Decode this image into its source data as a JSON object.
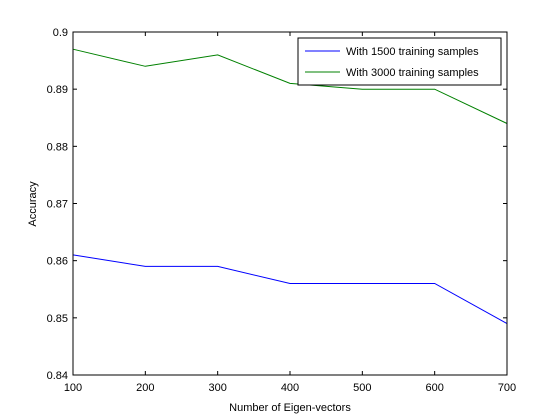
{
  "chart_data": {
    "type": "line",
    "xlabel": "Number of Eigen-vectors",
    "ylabel": "Accuracy",
    "x": [
      100,
      200,
      300,
      400,
      500,
      600,
      700
    ],
    "xlim": [
      100,
      700
    ],
    "ylim": [
      0.84,
      0.9
    ],
    "xticks": [
      "100",
      "200",
      "300",
      "400",
      "500",
      "600",
      "700"
    ],
    "yticks": [
      "0.84",
      "0.85",
      "0.86",
      "0.87",
      "0.88",
      "0.89",
      "0.9"
    ],
    "grid": false,
    "legend_position": "top-right",
    "series": [
      {
        "name": "With 1500 training samples",
        "color": "#0000ff",
        "values": [
          0.861,
          0.859,
          0.859,
          0.856,
          0.856,
          0.856,
          0.849
        ]
      },
      {
        "name": "With 3000 training samples",
        "color": "#008000",
        "values": [
          0.897,
          0.894,
          0.896,
          0.891,
          0.89,
          0.89,
          0.884
        ]
      }
    ]
  }
}
